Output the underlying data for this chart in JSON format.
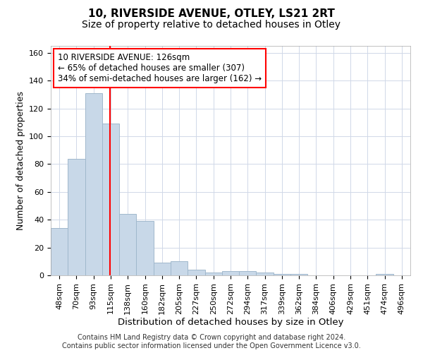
{
  "title1": "10, RIVERSIDE AVENUE, OTLEY, LS21 2RT",
  "title2": "Size of property relative to detached houses in Otley",
  "xlabel": "Distribution of detached houses by size in Otley",
  "ylabel": "Number of detached properties",
  "bin_labels": [
    "48sqm",
    "70sqm",
    "93sqm",
    "115sqm",
    "138sqm",
    "160sqm",
    "182sqm",
    "205sqm",
    "227sqm",
    "250sqm",
    "272sqm",
    "294sqm",
    "317sqm",
    "339sqm",
    "362sqm",
    "384sqm",
    "406sqm",
    "429sqm",
    "451sqm",
    "474sqm",
    "496sqm"
  ],
  "bar_heights": [
    34,
    84,
    131,
    109,
    44,
    39,
    9,
    10,
    4,
    2,
    3,
    3,
    2,
    1,
    1,
    0,
    0,
    0,
    0,
    1,
    0
  ],
  "bar_color": "#c8d8e8",
  "bar_edgecolor": "#a0b8cc",
  "grid_color": "#d0d8e8",
  "annotation_text": "10 RIVERSIDE AVENUE: 126sqm\n← 65% of detached houses are smaller (307)\n34% of semi-detached houses are larger (162) →",
  "annotation_box_color": "white",
  "annotation_box_edgecolor": "red",
  "footer": "Contains HM Land Registry data © Crown copyright and database right 2024.\nContains public sector information licensed under the Open Government Licence v3.0.",
  "ylim": [
    0,
    165
  ],
  "yticks": [
    0,
    20,
    40,
    60,
    80,
    100,
    120,
    140,
    160
  ],
  "title1_fontsize": 11,
  "title2_fontsize": 10,
  "xlabel_fontsize": 9.5,
  "ylabel_fontsize": 9,
  "tick_fontsize": 8,
  "annotation_fontsize": 8.5,
  "footer_fontsize": 7
}
